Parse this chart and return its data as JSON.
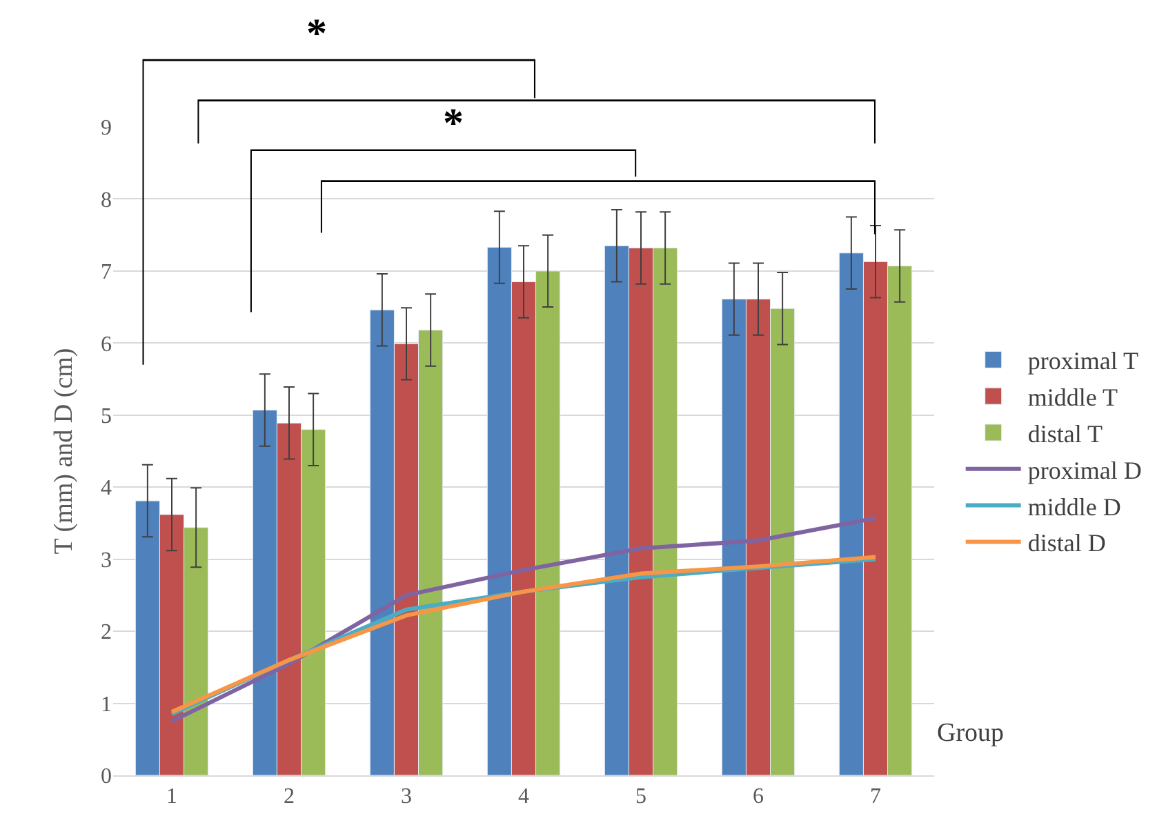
{
  "chart_data": {
    "type": "bar",
    "xlabel": "Group",
    "ylabel": "T (mm) and D (cm)",
    "categories": [
      "1",
      "2",
      "3",
      "4",
      "5",
      "6",
      "7"
    ],
    "series": [
      {
        "name": "proximal T",
        "color": "#4f81bd",
        "values": [
          3.81,
          5.07,
          6.46,
          7.33,
          7.35,
          6.61,
          7.25
        ],
        "errors": [
          0.5,
          0.5,
          0.5,
          0.5,
          0.5,
          0.5,
          0.5
        ]
      },
      {
        "name": "middle T",
        "color": "#c0504d",
        "values": [
          3.62,
          4.89,
          5.99,
          6.85,
          7.32,
          6.61,
          7.13
        ],
        "errors": [
          0.5,
          0.5,
          0.5,
          0.5,
          0.5,
          0.5,
          0.5
        ]
      },
      {
        "name": "distal T",
        "color": "#9bbb59",
        "values": [
          3.44,
          4.8,
          6.18,
          7.0,
          7.32,
          6.48,
          7.07
        ],
        "errors": [
          0.55,
          0.5,
          0.5,
          0.5,
          0.5,
          0.5,
          0.5
        ]
      },
      {
        "name": "proximal D",
        "type": "line",
        "color": "#8064a2",
        "values": [
          0.75,
          1.55,
          2.5,
          2.85,
          3.15,
          3.26,
          3.57
        ]
      },
      {
        "name": "middle D",
        "type": "line",
        "color": "#4bacc6",
        "values": [
          0.85,
          1.6,
          2.3,
          2.55,
          2.75,
          2.88,
          3.0
        ]
      },
      {
        "name": "distal D",
        "type": "line",
        "color": "#f79646",
        "values": [
          0.88,
          1.6,
          2.22,
          2.55,
          2.8,
          2.9,
          3.03
        ]
      }
    ],
    "ylim": [
      0,
      9
    ],
    "yticks": [
      0,
      1,
      2,
      3,
      4,
      5,
      6,
      7,
      8,
      9
    ],
    "grid": "y",
    "legend": "right",
    "marker": "none",
    "annotations": [
      "*",
      "*"
    ]
  }
}
